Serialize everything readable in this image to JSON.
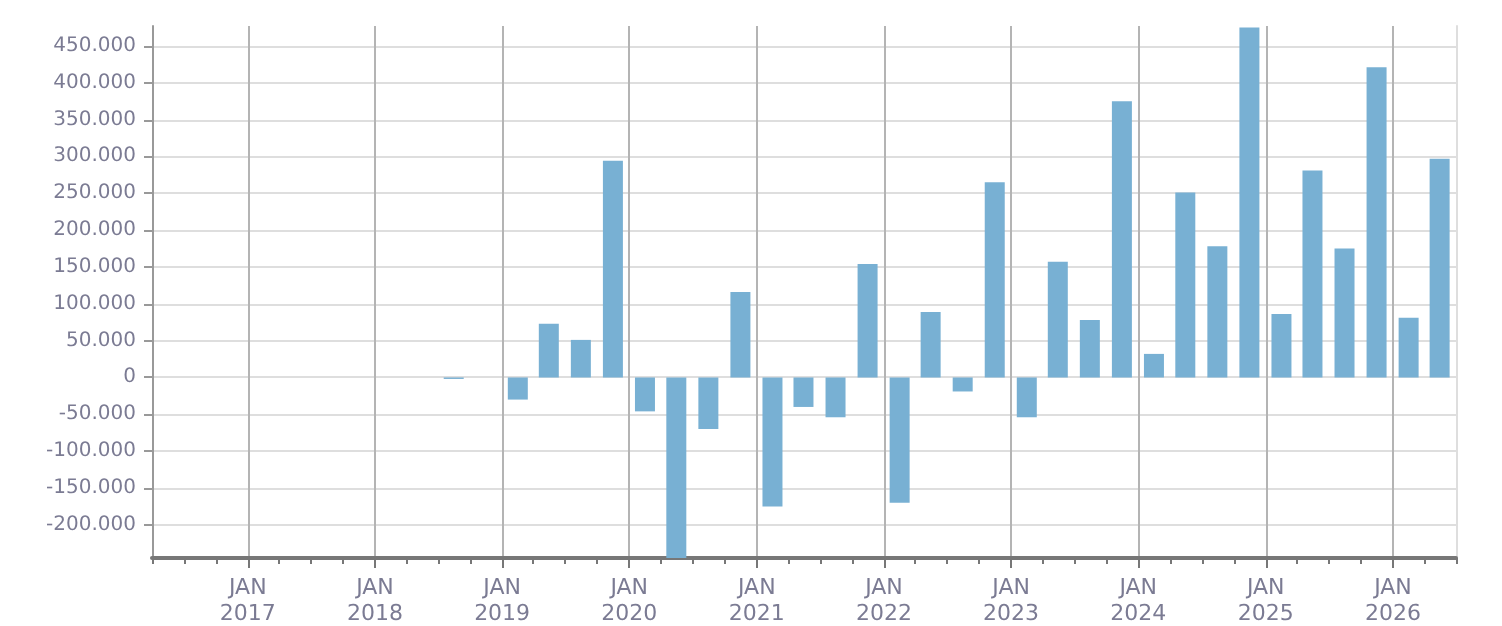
{
  "chart_data": {
    "type": "bar",
    "x": [
      "2018-08-15",
      "2018-11-15",
      "2019-02-15",
      "2019-05-15",
      "2019-08-15",
      "2019-11-15",
      "2020-02-15",
      "2020-05-15",
      "2020-08-15",
      "2020-11-15",
      "2021-02-15",
      "2021-05-15",
      "2021-08-15",
      "2021-11-15",
      "2022-02-15",
      "2022-05-15",
      "2022-08-15",
      "2022-11-15",
      "2023-02-15",
      "2023-05-15",
      "2023-08-15",
      "2023-11-15",
      "2024-02-15",
      "2024-05-15",
      "2024-08-15",
      "2024-11-15",
      "2025-02-15",
      "2025-05-15",
      "2025-08-15",
      "2025-11-15",
      "2026-02-15",
      "2026-05-15"
    ],
    "values": [
      -2000,
      null,
      -30000,
      73000,
      51000,
      294000,
      -46000,
      -245000,
      -70000,
      116000,
      -175000,
      -40000,
      -54000,
      154000,
      -170000,
      89000,
      -19000,
      265000,
      -54000,
      157000,
      78000,
      375000,
      32000,
      251000,
      178000,
      475000,
      86000,
      281000,
      175000,
      421000,
      81000,
      297000
    ],
    "color": "#78b0d3",
    "xlim": [
      "2016-04-01",
      "2026-07-01"
    ],
    "xticks": [
      {
        "value": "2016-04-01",
        "label": null
      },
      {
        "value": "2016-07-01",
        "label": null
      },
      {
        "value": "2016-10-01",
        "label": null
      },
      {
        "value": "2017-01-01",
        "label": "JAN\n2017"
      },
      {
        "value": "2017-04-01",
        "label": null
      },
      {
        "value": "2017-07-01",
        "label": null
      },
      {
        "value": "2017-10-01",
        "label": null
      },
      {
        "value": "2018-01-01",
        "label": "JAN\n2018"
      },
      {
        "value": "2018-04-01",
        "label": null
      },
      {
        "value": "2018-07-01",
        "label": null
      },
      {
        "value": "2018-10-01",
        "label": null
      },
      {
        "value": "2019-01-01",
        "label": "JAN\n2019"
      },
      {
        "value": "2019-04-01",
        "label": null
      },
      {
        "value": "2019-07-01",
        "label": null
      },
      {
        "value": "2019-10-01",
        "label": null
      },
      {
        "value": "2020-01-01",
        "label": "JAN\n2020"
      },
      {
        "value": "2020-04-01",
        "label": null
      },
      {
        "value": "2020-07-01",
        "label": null
      },
      {
        "value": "2020-10-01",
        "label": null
      },
      {
        "value": "2021-01-01",
        "label": "JAN\n2021"
      },
      {
        "value": "2021-04-01",
        "label": null
      },
      {
        "value": "2021-07-01",
        "label": null
      },
      {
        "value": "2021-10-01",
        "label": null
      },
      {
        "value": "2022-01-01",
        "label": "JAN\n2022"
      },
      {
        "value": "2022-04-01",
        "label": null
      },
      {
        "value": "2022-07-01",
        "label": null
      },
      {
        "value": "2022-10-01",
        "label": null
      },
      {
        "value": "2023-01-01",
        "label": "JAN\n2023"
      },
      {
        "value": "2023-04-01",
        "label": null
      },
      {
        "value": "2023-07-01",
        "label": null
      },
      {
        "value": "2023-10-01",
        "label": null
      },
      {
        "value": "2024-01-01",
        "label": "JAN\n2024"
      },
      {
        "value": "2024-04-01",
        "label": null
      },
      {
        "value": "2024-07-01",
        "label": null
      },
      {
        "value": "2024-10-01",
        "label": null
      },
      {
        "value": "2025-01-01",
        "label": "JAN\n2025"
      },
      {
        "value": "2025-04-01",
        "label": null
      },
      {
        "value": "2025-07-01",
        "label": null
      },
      {
        "value": "2025-10-01",
        "label": null
      },
      {
        "value": "2026-01-01",
        "label": "JAN\n2026"
      },
      {
        "value": "2026-04-01",
        "label": null
      },
      {
        "value": "2026-07-01",
        "label": null
      }
    ],
    "ylim": [
      -245000,
      477000
    ],
    "yticks": [
      {
        "value": -200000,
        "label": "-200.000"
      },
      {
        "value": -150000,
        "label": "-150.000"
      },
      {
        "value": -100000,
        "label": "-100.000"
      },
      {
        "value": -50000,
        "label": "-50.000"
      },
      {
        "value": 0,
        "label": "0"
      },
      {
        "value": 50000,
        "label": "50.000"
      },
      {
        "value": 100000,
        "label": "100.000"
      },
      {
        "value": 150000,
        "label": "150.000"
      },
      {
        "value": 200000,
        "label": "200.000"
      },
      {
        "value": 250000,
        "label": "250.000"
      },
      {
        "value": 300000,
        "label": "300.000"
      },
      {
        "value": 350000,
        "label": "350.000"
      },
      {
        "value": 400000,
        "label": "400.000"
      },
      {
        "value": 450000,
        "label": "450.000"
      }
    ],
    "grid": true
  }
}
